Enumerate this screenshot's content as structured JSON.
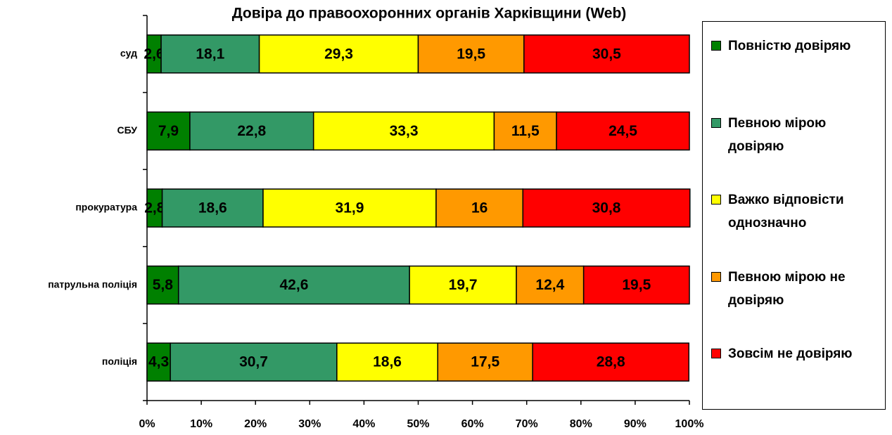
{
  "chart_data": {
    "type": "stacked_bar_horizontal",
    "title": "Довіра до правоохоронних органів Харківщини (Web)",
    "categories": [
      "суд",
      "СБУ",
      "прокуратура",
      "патрульна поліція",
      "поліція"
    ],
    "series": [
      {
        "name": "Повністю довіряю",
        "color": "#008000",
        "values": [
          2.6,
          7.9,
          2.8,
          5.8,
          4.3
        ],
        "value_labels": [
          "2,6",
          "7,9",
          "2,8",
          "5,8",
          "4,3"
        ]
      },
      {
        "name": "Певною мірою довіряю",
        "color": "#339966",
        "values": [
          18.1,
          22.8,
          18.6,
          42.6,
          30.7
        ],
        "value_labels": [
          "18,1",
          "22,8",
          "18,6",
          "42,6",
          "30,7"
        ]
      },
      {
        "name": "Важко відповісти однозначно",
        "color": "#ffff00",
        "values": [
          29.3,
          33.3,
          31.9,
          19.7,
          18.6
        ],
        "value_labels": [
          "29,3",
          "33,3",
          "31,9",
          "19,7",
          "18,6"
        ]
      },
      {
        "name": "Певною мірою не довіряю",
        "color": "#ff9900",
        "values": [
          19.5,
          11.5,
          16,
          12.4,
          17.5
        ],
        "value_labels": [
          "19,5",
          "11,5",
          "16",
          "12,4",
          "17,5"
        ]
      },
      {
        "name": "Зовсім не довіряю",
        "color": "#ff0000",
        "values": [
          30.5,
          24.5,
          30.8,
          19.5,
          28.8
        ],
        "value_labels": [
          "30,5",
          "24,5",
          "30,8",
          "19,5",
          "28,8"
        ]
      }
    ],
    "xlim": [
      0,
      100
    ],
    "xticks": [
      {
        "value": 0,
        "label": "0%"
      },
      {
        "value": 10,
        "label": "10%"
      },
      {
        "value": 20,
        "label": "20%"
      },
      {
        "value": 30,
        "label": "30%"
      },
      {
        "value": 40,
        "label": "40%"
      },
      {
        "value": 50,
        "label": "50%"
      },
      {
        "value": 60,
        "label": "60%"
      },
      {
        "value": 70,
        "label": "70%"
      },
      {
        "value": 80,
        "label": "80%"
      },
      {
        "value": 90,
        "label": "90%"
      },
      {
        "value": 100,
        "label": "100%"
      }
    ],
    "legend": "right"
  }
}
